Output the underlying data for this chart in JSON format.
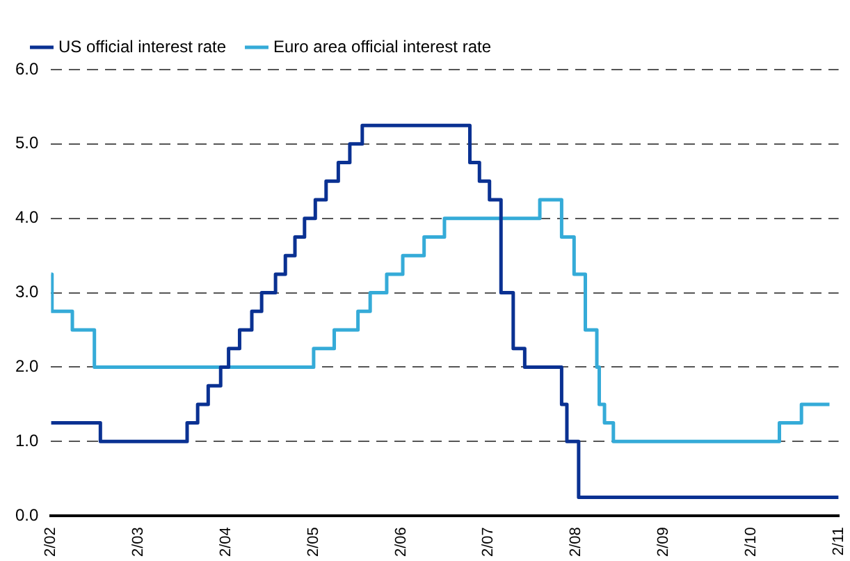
{
  "chart_data": {
    "type": "step",
    "xlim": [
      "2002-02",
      "2011-02"
    ],
    "xticks": [
      {
        "value": "2002-02",
        "label": "2/02"
      },
      {
        "value": "2003-02",
        "label": "2/03"
      },
      {
        "value": "2004-02",
        "label": "2/04"
      },
      {
        "value": "2005-02",
        "label": "2/05"
      },
      {
        "value": "2006-02",
        "label": "2/06"
      },
      {
        "value": "2007-02",
        "label": "2/07"
      },
      {
        "value": "2008-02",
        "label": "2/08"
      },
      {
        "value": "2009-02",
        "label": "2/09"
      },
      {
        "value": "2010-02",
        "label": "2/10"
      },
      {
        "value": "2011-02",
        "label": "2/11"
      }
    ],
    "ylim": [
      0,
      6
    ],
    "yticks": [
      {
        "value": 0,
        "label": "0.0"
      },
      {
        "value": 1,
        "label": "1.0"
      },
      {
        "value": 2,
        "label": "2.0"
      },
      {
        "value": 3,
        "label": "3.0"
      },
      {
        "value": 4,
        "label": "4.0"
      },
      {
        "value": 5,
        "label": "5.0"
      },
      {
        "value": 6,
        "label": "6.0"
      }
    ],
    "grid": "y",
    "legend": "top left",
    "marker": "none",
    "line_style": "solid",
    "series": [
      {
        "name": "US official interest rate",
        "color": "#0a3192",
        "x": [
          "2002-02-01",
          "2002-08-26",
          "2003-08-23",
          "2003-10-06",
          "2003-11-19",
          "2004-01-10",
          "2004-02-12",
          "2004-03-29",
          "2004-05-19",
          "2004-06-29",
          "2004-08-26",
          "2004-10-06",
          "2004-11-15",
          "2004-12-25",
          "2005-02-08",
          "2005-03-25",
          "2005-05-15",
          "2005-07-02",
          "2005-08-23",
          "2006-11-15",
          "2006-12-25",
          "2007-02-05",
          "2007-03-25",
          "2007-05-15",
          "2007-07-02",
          "2007-12-03",
          "2007-12-25",
          "2008-02-12",
          "2011-02-01"
        ],
        "values": [
          1.25,
          1.0,
          1.25,
          1.5,
          1.75,
          2.0,
          2.25,
          2.5,
          2.75,
          3.0,
          3.25,
          3.5,
          3.75,
          4.0,
          4.25,
          4.5,
          4.75,
          5.0,
          5.25,
          4.75,
          4.5,
          4.25,
          3.0,
          2.25,
          2.0,
          1.5,
          1.0,
          0.25,
          0.25
        ]
      },
      {
        "name": "Euro area official interest rate",
        "color": "#35abd8",
        "x": [
          "2002-02-01",
          "2002-02-05",
          "2002-05-01",
          "2002-08-01",
          "2005-02-01",
          "2005-04-28",
          "2005-08-05",
          "2005-09-25",
          "2005-12-03",
          "2006-02-08",
          "2006-05-08",
          "2006-08-01",
          "2007-09-03",
          "2007-12-03",
          "2008-01-24",
          "2008-03-11",
          "2008-04-28",
          "2008-05-08",
          "2008-05-30",
          "2008-07-06",
          "2010-05-30",
          "2010-08-30",
          "2010-12-25"
        ],
        "values": [
          3.25,
          2.75,
          2.5,
          2.0,
          2.25,
          2.5,
          2.75,
          3.0,
          3.25,
          3.5,
          3.75,
          4.0,
          4.25,
          3.75,
          3.25,
          2.5,
          2.0,
          1.5,
          1.25,
          1.0,
          1.25,
          1.5,
          1.5
        ]
      }
    ]
  }
}
